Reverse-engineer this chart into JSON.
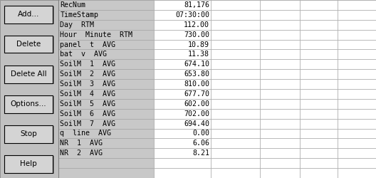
{
  "buttons": [
    "Add...",
    "Delete",
    "Delete All",
    "Options...",
    "Stop",
    "Help"
  ],
  "rows": [
    [
      "RecNum",
      "81,176",
      "",
      "",
      "",
      ""
    ],
    [
      "TimeStamp",
      "07:30:00",
      "",
      "",
      "",
      ""
    ],
    [
      "Day  RTM",
      "112.00",
      "",
      "",
      "",
      ""
    ],
    [
      "Hour  Minute  RTM",
      "730.00",
      "",
      "",
      "",
      ""
    ],
    [
      "panel  t  AVG",
      "10.89",
      "",
      "",
      "",
      ""
    ],
    [
      "bat  v  AVG",
      "11.38",
      "",
      "",
      "",
      ""
    ],
    [
      "SoilM  1  AVG",
      "674.10",
      "",
      "",
      "",
      ""
    ],
    [
      "SoilM  2  AVG",
      "653.80",
      "",
      "",
      "",
      ""
    ],
    [
      "SoilM  3  AVG",
      "810.00",
      "",
      "",
      "",
      ""
    ],
    [
      "SoilM  4  AVG",
      "677.70",
      "",
      "",
      "",
      ""
    ],
    [
      "SoilM  5  AVG",
      "602.00",
      "",
      "",
      "",
      ""
    ],
    [
      "SoilM  6  AVG",
      "702.00",
      "",
      "",
      "",
      ""
    ],
    [
      "SoilM  7  AVG",
      "694.40",
      "",
      "",
      "",
      ""
    ],
    [
      "q  line  AVG",
      "0.00",
      "",
      "",
      "",
      ""
    ],
    [
      "NR  1  AVG",
      "6.06",
      "",
      "",
      "",
      ""
    ],
    [
      "NR  2  AVG",
      "8.21",
      "",
      "",
      "",
      ""
    ],
    [
      "",
      "",
      "",
      "",
      "",
      ""
    ],
    [
      "",
      "",
      "",
      "",
      "",
      ""
    ]
  ],
  "bg_color": "#c0c0c0",
  "table_bg": "#c8c8c8",
  "cell_bg_white": "#ffffff",
  "button_bg": "#d4d4d4",
  "border_color": "#808080",
  "text_color": "#000000",
  "font_size": 7.5,
  "fig_width": 5.28,
  "fig_height": 2.5
}
